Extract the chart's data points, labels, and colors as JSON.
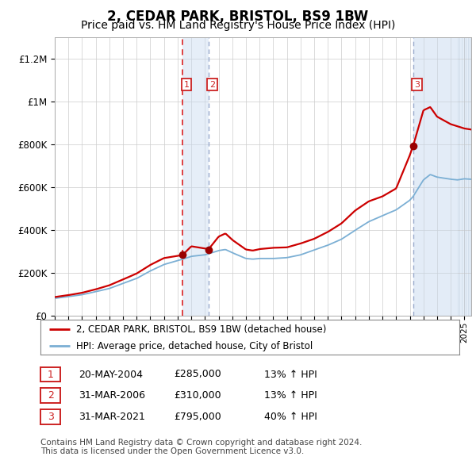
{
  "title": "2, CEDAR PARK, BRISTOL, BS9 1BW",
  "subtitle": "Price paid vs. HM Land Registry's House Price Index (HPI)",
  "title_fontsize": 12,
  "subtitle_fontsize": 10,
  "background_color": "#ffffff",
  "plot_bg_color": "#ffffff",
  "grid_color": "#cccccc",
  "red_line_color": "#cc0000",
  "blue_line_color": "#7bafd4",
  "sale_marker_color": "#990000",
  "ylim": [
    0,
    1300000
  ],
  "yticks": [
    0,
    200000,
    400000,
    600000,
    800000,
    1000000,
    1200000
  ],
  "ytick_labels": [
    "£0",
    "£200K",
    "£400K",
    "£600K",
    "£800K",
    "£1M",
    "£1.2M"
  ],
  "xstart": 1995,
  "xend": 2025.5,
  "sale_dates": [
    2004.37,
    2006.25,
    2021.25
  ],
  "sale_prices": [
    285000,
    310000,
    795000
  ],
  "legend_entries": [
    "2, CEDAR PARK, BRISTOL, BS9 1BW (detached house)",
    "HPI: Average price, detached house, City of Bristol"
  ],
  "table_rows": [
    {
      "num": "1",
      "date": "20-MAY-2004",
      "price": "£285,000",
      "hpi": "13% ↑ HPI"
    },
    {
      "num": "2",
      "date": "31-MAR-2006",
      "price": "£310,000",
      "hpi": "13% ↑ HPI"
    },
    {
      "num": "3",
      "date": "31-MAR-2021",
      "price": "£795,000",
      "hpi": "40% ↑ HPI"
    }
  ],
  "footer": "Contains HM Land Registry data © Crown copyright and database right 2024.\nThis data is licensed under the Open Government Licence v3.0."
}
